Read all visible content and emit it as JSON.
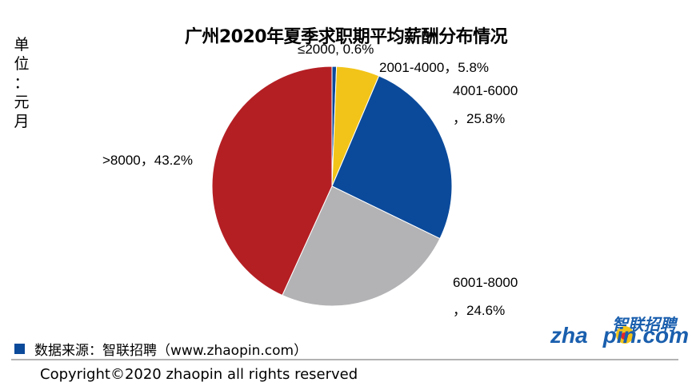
{
  "chart_data": {
    "type": "pie",
    "title": "广州2020年夏季求职期平均薪酬分布情况",
    "unit_label": "单位：元/月",
    "slices": [
      {
        "label": "≤2000",
        "pct_text": "0.6%",
        "value": 0.6,
        "color": "#0b4a9b"
      },
      {
        "label": "2001-4000",
        "pct_text": "5.8%",
        "value": 5.8,
        "color": "#f2c419"
      },
      {
        "label": "4001-6000",
        "pct_text": "25.8%",
        "value": 25.8,
        "color": "#0b4a9b"
      },
      {
        "label": "6001-8000",
        "pct_text": "24.6%",
        "value": 24.6,
        "color": "#b3b3b5"
      },
      {
        "label": ">8000",
        "pct_text": "43.2%",
        "value": 43.2,
        "color": "#b41f24"
      }
    ],
    "slice_labels": {
      "s0": "≤2000, 0.6%",
      "s1": "2001-4000，5.8%",
      "s2a": "4001-6000",
      "s2b": "，25.8%",
      "s3a": "6001-8000",
      "s3b": "，24.6%",
      "s4": ">8000，43.2%"
    }
  },
  "unit_chars": [
    "单",
    "位",
    "：",
    "元",
    "月"
  ],
  "source": "数据来源：智联招聘（www.zhaopin.com）",
  "copyright": "Copyright©2020 zhaopin all rights reserved",
  "logo": {
    "cn": "智联招聘",
    "en_a": "zha",
    "en_b": "pin.com"
  },
  "colors": {
    "source_square": "#0b4a9b",
    "logo_blue": "#1a5fae",
    "logo_yellow": "#f4c419"
  }
}
